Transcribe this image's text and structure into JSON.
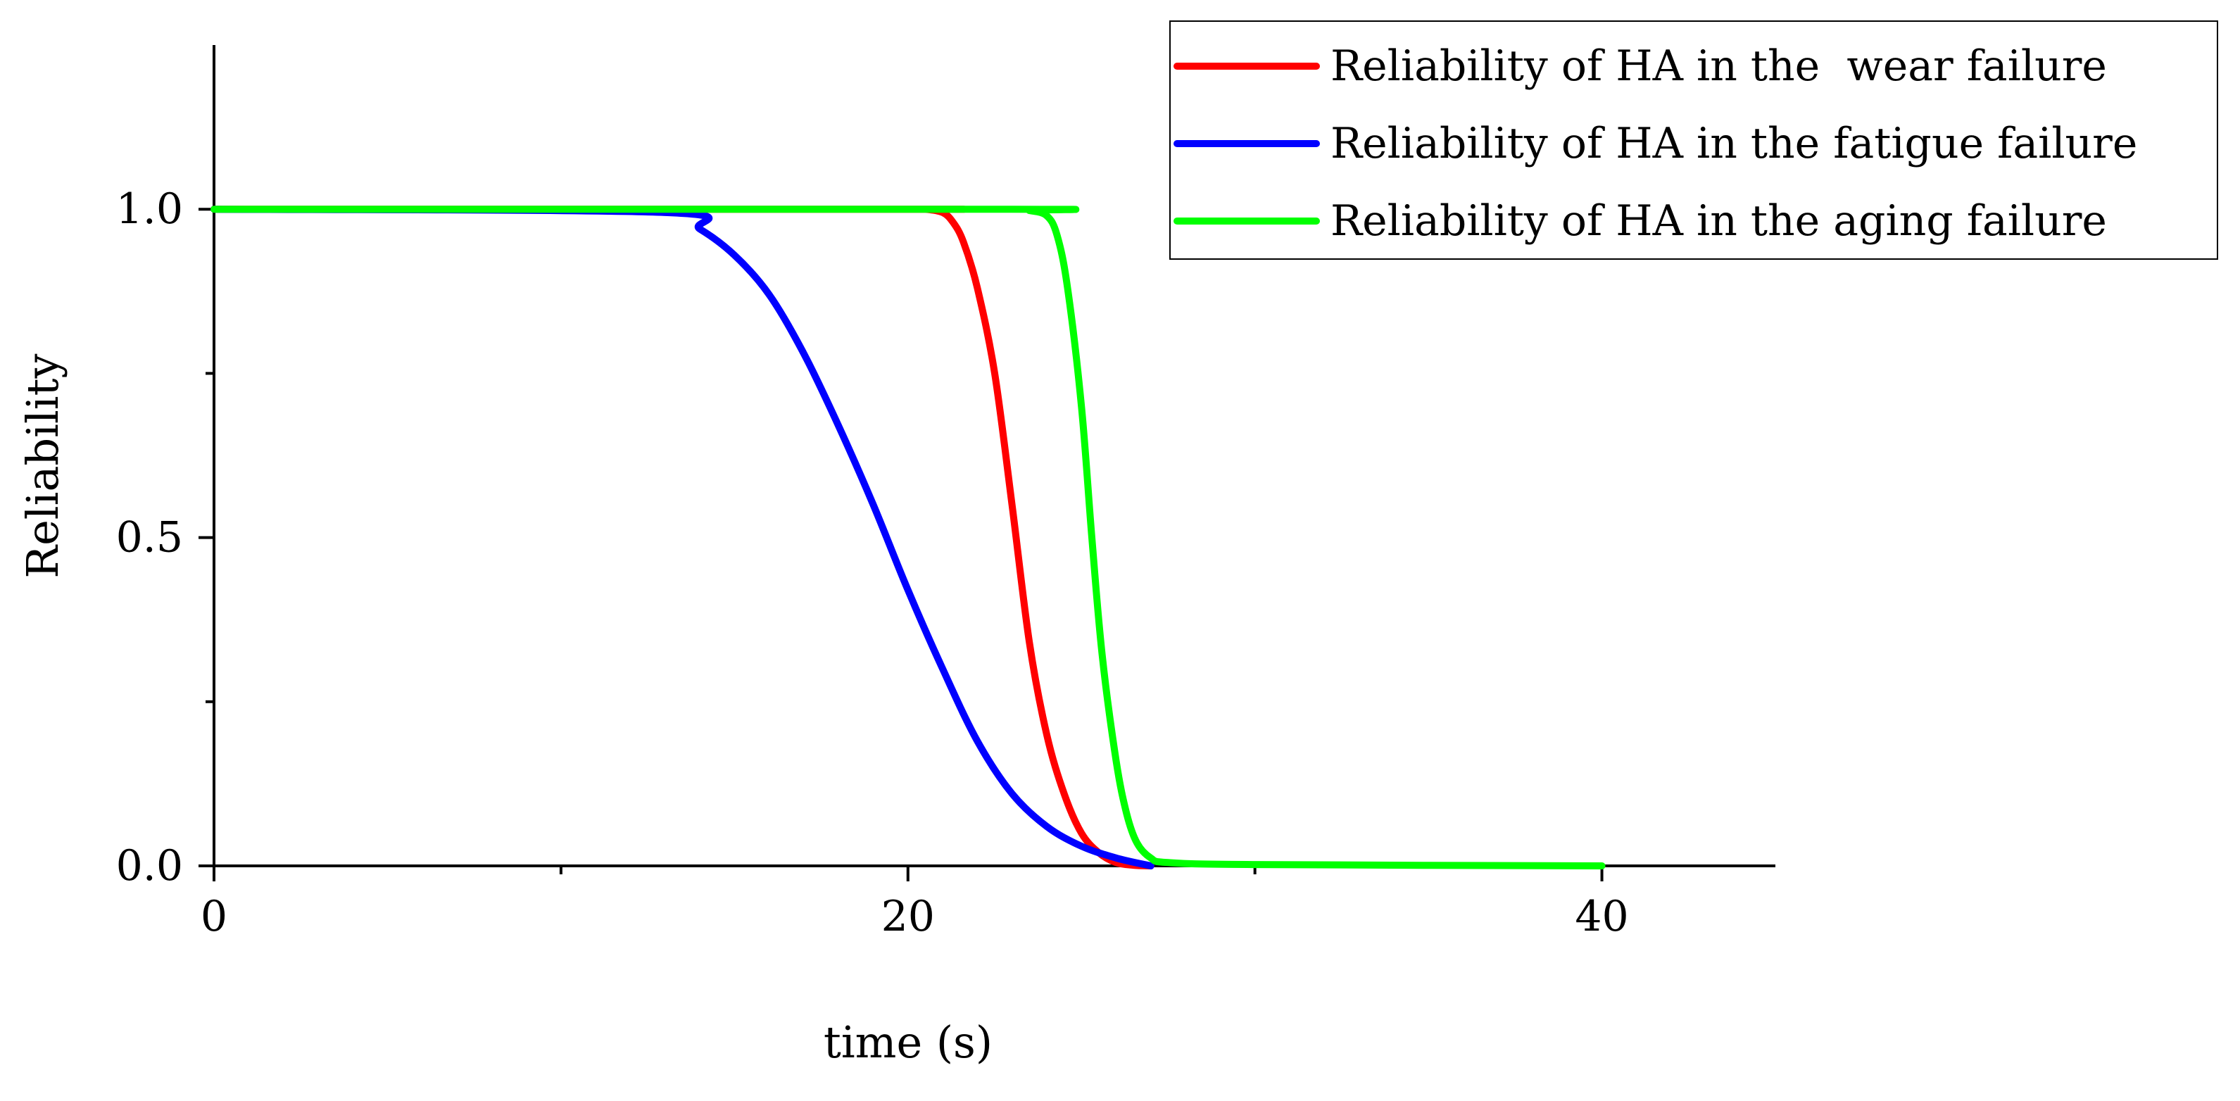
{
  "chart_data": {
    "type": "line",
    "title": "",
    "xlabel": "time (s)",
    "ylabel": "Reliability",
    "xlim": [
      0,
      45
    ],
    "ylim": [
      0,
      1.25
    ],
    "x_ticks": [
      0,
      20,
      40
    ],
    "x_tick_labels": [
      "0",
      "20",
      "40"
    ],
    "x_minor_ticks": [
      10,
      30
    ],
    "y_ticks": [
      0.0,
      0.5,
      1.0
    ],
    "y_tick_labels": [
      "0.0",
      "0.5",
      "1.0"
    ],
    "y_minor_ticks": [
      0.25,
      0.75
    ],
    "grid": false,
    "legend_position": "top-right",
    "series": [
      {
        "name": "Reliability of HA in the  wear failure",
        "color": "#ff0000",
        "x": [
          0,
          20,
          20.5,
          21,
          21.3,
          21.6,
          22,
          22.5,
          23,
          23.5,
          24,
          24.5,
          25,
          25.5,
          26,
          26.5,
          27
        ],
        "y": [
          1.0,
          1.0,
          1.0,
          0.995,
          0.98,
          0.95,
          0.88,
          0.75,
          0.55,
          0.34,
          0.2,
          0.11,
          0.05,
          0.02,
          0.005,
          0.001,
          0.0
        ]
      },
      {
        "name": "Reliability of HA in the fatigue failure",
        "color": "#0000ff",
        "x": [
          0,
          13,
          14,
          15,
          16,
          17,
          18,
          19,
          20,
          21,
          22,
          23,
          24,
          25,
          26,
          27
        ],
        "y": [
          1.0,
          0.995,
          0.97,
          0.93,
          0.87,
          0.78,
          0.67,
          0.55,
          0.42,
          0.3,
          0.19,
          0.11,
          0.06,
          0.03,
          0.012,
          0.0
        ]
      },
      {
        "name": "Reliability of HA in the aging failure",
        "color": "#00ff00",
        "x": [
          0,
          23,
          23.5,
          24,
          24.3,
          24.6,
          25,
          25.3,
          25.6,
          26,
          26.3,
          26.6,
          27,
          27.5,
          30,
          40
        ],
        "y": [
          1.0,
          1.0,
          0.998,
          0.99,
          0.96,
          0.88,
          0.7,
          0.5,
          0.32,
          0.16,
          0.08,
          0.035,
          0.012,
          0.005,
          0.002,
          0.0
        ]
      }
    ]
  }
}
